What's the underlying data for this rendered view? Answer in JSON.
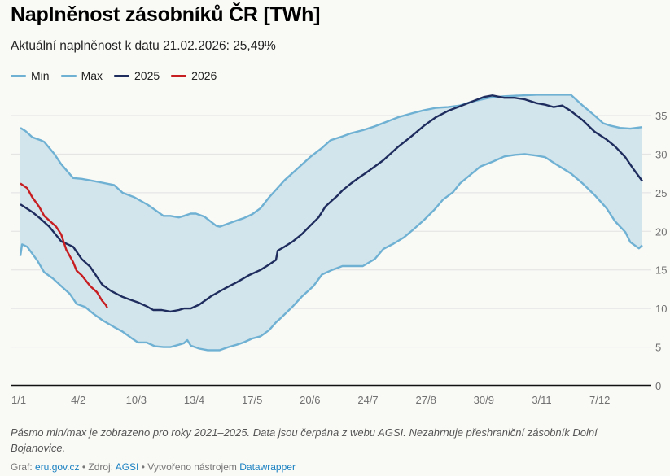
{
  "header": {
    "title": "Naplněnost zásobníků ČR [TWh]",
    "subtitle": "Aktuální naplněnost k datu 21.02.2026: 25,49%"
  },
  "legend": [
    {
      "label": "Min",
      "color": "#6fb1d3"
    },
    {
      "label": "Max",
      "color": "#6fb1d3"
    },
    {
      "label": "2025",
      "color": "#1e2c5e"
    },
    {
      "label": "2026",
      "color": "#c71e22"
    }
  ],
  "colors": {
    "band_fill": "#d2e4ec",
    "band_line": "#6fb1d3",
    "series_2025": "#1e2c5e",
    "series_2026": "#c71e22",
    "grid": "#e2e2e2",
    "axis": "#111111"
  },
  "chart_data": {
    "type": "area",
    "title": "Naplněnost zásobníků ČR [TWh]",
    "xlabel": "",
    "ylabel": "TWh",
    "x_unit": "day of year",
    "xlim": [
      0,
      365
    ],
    "ylim": [
      0,
      35
    ],
    "y_ticks": [
      0,
      5,
      10,
      15,
      20,
      25,
      30,
      35
    ],
    "x_ticks": [
      {
        "day": 0,
        "label": "1/1"
      },
      {
        "day": 34,
        "label": "4/2"
      },
      {
        "day": 68,
        "label": "10/3"
      },
      {
        "day": 102,
        "label": "13/4"
      },
      {
        "day": 136,
        "label": "17/5"
      },
      {
        "day": 170,
        "label": "20/6"
      },
      {
        "day": 204,
        "label": "24/7"
      },
      {
        "day": 238,
        "label": "27/8"
      },
      {
        "day": 272,
        "label": "30/9"
      },
      {
        "day": 306,
        "label": "3/11"
      },
      {
        "day": 340,
        "label": "7/12"
      }
    ],
    "grid": true,
    "legend_position": "top-left",
    "y_axis_position": "right",
    "series": [
      {
        "name": "Max",
        "x": [
          0,
          3,
          7,
          12,
          14,
          20,
          24,
          31,
          36,
          41,
          48,
          55,
          60,
          67,
          75,
          84,
          88,
          93,
          96,
          100,
          103,
          108,
          115,
          117,
          122,
          127,
          131,
          136,
          141,
          146,
          155,
          163,
          170,
          177,
          182,
          189,
          194,
          201,
          208,
          215,
          222,
          230,
          237,
          244,
          251,
          258,
          265,
          275,
          284,
          294,
          303,
          313,
          323,
          330,
          337,
          342,
          346,
          352,
          358,
          365
        ],
        "values": [
          33.4,
          33.0,
          32.2,
          31.8,
          31.6,
          30.0,
          28.7,
          26.9,
          26.8,
          26.6,
          26.3,
          26.0,
          25.0,
          24.4,
          23.4,
          22.0,
          22.0,
          21.8,
          22.0,
          22.3,
          22.3,
          21.9,
          20.7,
          20.6,
          21.0,
          21.4,
          21.7,
          22.2,
          23.0,
          24.4,
          26.6,
          28.2,
          29.6,
          30.8,
          31.8,
          32.3,
          32.7,
          33.1,
          33.6,
          34.2,
          34.8,
          35.3,
          35.7,
          36.0,
          36.1,
          36.3,
          36.8,
          37.3,
          37.5,
          37.6,
          37.7,
          37.7,
          37.7,
          36.3,
          35.0,
          34.0,
          33.7,
          33.4,
          33.3,
          33.5
        ]
      },
      {
        "name": "Min",
        "x": [
          0,
          1,
          4,
          7,
          10,
          14,
          19,
          24,
          29,
          33,
          38,
          43,
          48,
          55,
          60,
          65,
          69,
          74,
          79,
          84,
          88,
          93,
          96,
          98,
          100,
          105,
          110,
          117,
          122,
          127,
          131,
          136,
          141,
          146,
          150,
          153,
          160,
          165,
          172,
          177,
          183,
          189,
          196,
          201,
          208,
          213,
          219,
          225,
          231,
          237,
          243,
          248,
          254,
          258,
          264,
          270,
          277,
          284,
          290,
          296,
          303,
          308,
          315,
          323,
          330,
          337,
          344,
          349,
          355,
          358,
          363,
          365
        ],
        "values": [
          16.8,
          18.3,
          18.0,
          17.1,
          16.2,
          14.7,
          13.9,
          12.9,
          11.9,
          10.6,
          10.2,
          9.3,
          8.5,
          7.6,
          7.0,
          6.2,
          5.6,
          5.6,
          5.1,
          5.0,
          5.0,
          5.3,
          5.5,
          5.9,
          5.2,
          4.8,
          4.6,
          4.6,
          5.0,
          5.3,
          5.6,
          6.1,
          6.4,
          7.2,
          8.2,
          8.8,
          10.3,
          11.5,
          12.9,
          14.4,
          15.0,
          15.5,
          15.5,
          15.5,
          16.4,
          17.7,
          18.4,
          19.2,
          20.3,
          21.5,
          22.8,
          24.1,
          25.1,
          26.2,
          27.3,
          28.4,
          29.0,
          29.7,
          29.9,
          30.0,
          29.8,
          29.6,
          28.6,
          27.5,
          26.2,
          24.7,
          23.0,
          21.3,
          19.9,
          18.6,
          17.8,
          18.2
        ]
      },
      {
        "name": "2025",
        "x": [
          0,
          7,
          12,
          17,
          24,
          31,
          36,
          41,
          48,
          53,
          60,
          65,
          69,
          74,
          78,
          83,
          88,
          93,
          96,
          100,
          105,
          112,
          120,
          127,
          134,
          141,
          146,
          150,
          151,
          155,
          160,
          165,
          170,
          175,
          179,
          183,
          186,
          189,
          194,
          199,
          203,
          208,
          213,
          217,
          222,
          230,
          237,
          244,
          251,
          258,
          265,
          272,
          277,
          284,
          290,
          296,
          303,
          308,
          313,
          318,
          323,
          330,
          337,
          344,
          349,
          355,
          360,
          365
        ],
        "values": [
          23.5,
          22.5,
          21.6,
          20.6,
          18.7,
          18.0,
          16.4,
          15.4,
          13.1,
          12.3,
          11.5,
          11.1,
          10.8,
          10.3,
          9.8,
          9.8,
          9.6,
          9.8,
          10.0,
          10.0,
          10.5,
          11.6,
          12.6,
          13.4,
          14.3,
          15.0,
          15.7,
          16.3,
          17.5,
          18.0,
          18.7,
          19.6,
          20.7,
          21.8,
          23.2,
          24.0,
          24.6,
          25.3,
          26.2,
          27.0,
          27.6,
          28.4,
          29.2,
          30.0,
          31.0,
          32.4,
          33.7,
          34.8,
          35.6,
          36.2,
          36.8,
          37.4,
          37.6,
          37.3,
          37.3,
          37.1,
          36.6,
          36.4,
          36.1,
          36.3,
          35.6,
          34.4,
          32.9,
          31.9,
          31.0,
          29.6,
          28.0,
          26.5
        ]
      },
      {
        "name": "2026",
        "x": [
          0,
          4,
          7,
          11,
          14,
          17,
          21,
          24,
          27,
          31,
          33,
          36,
          41,
          45,
          48,
          50,
          51
        ],
        "values": [
          26.2,
          25.6,
          24.4,
          23.2,
          22.0,
          21.4,
          20.6,
          19.6,
          17.6,
          16.0,
          14.9,
          14.3,
          12.9,
          12.1,
          11.0,
          10.5,
          10.1
        ]
      }
    ]
  },
  "footer": {
    "notes": "Pásmo min/max je zobrazeno pro roky 2021–2025. Data jsou čerpána z webu AGSI. Nezahrnuje přeshraniční zásobník Dolní Bojanovice.",
    "graf_prefix": "Graf:",
    "graf_link": "eru.gov.cz",
    "source_prefix": "• Zdroj:",
    "source_link": "AGSI",
    "created_prefix": "• Vytvořeno nástrojem",
    "created_link": "Datawrapper"
  }
}
